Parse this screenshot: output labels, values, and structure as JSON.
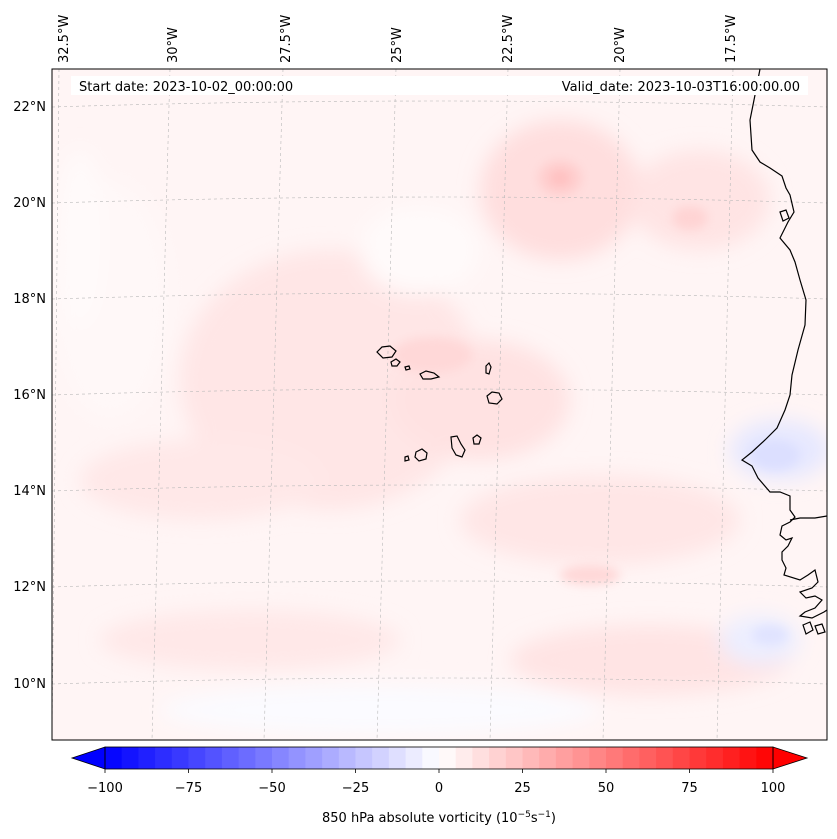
{
  "map": {
    "lon_labels": [
      "32.5°W",
      "30°W",
      "27.5°W",
      "25°W",
      "22.5°W",
      "20°W",
      "17.5°W"
    ],
    "lat_labels": [
      "22°N",
      "20°N",
      "18°N",
      "16°N",
      "14°N",
      "12°N",
      "10°N"
    ],
    "start_date_text": "Start date: 2023-10-02_00:00:00",
    "valid_date_text": "Valid_date: 2023-10-03T16:00:00.00",
    "field": "850 hPa absolute vorticity",
    "colormap": "bwr",
    "gridlines": true,
    "coastline_color": "#000000"
  },
  "colorbar": {
    "ticks": [
      "−100",
      "−75",
      "−50",
      "−25",
      "0",
      "25",
      "50",
      "75",
      "100"
    ],
    "range": [
      -100,
      100
    ],
    "label_main": "850 hPa absolute vorticity (10",
    "label_exp1": "−5",
    "label_mid": "s",
    "label_exp2": "−1",
    "label_end": ")",
    "min_color": "#0000ff",
    "mid_color": "#ffffff",
    "max_color": "#ff0000"
  }
}
